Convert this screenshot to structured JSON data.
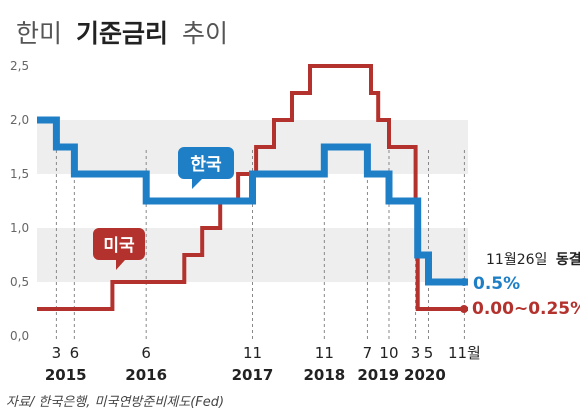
{
  "title": {
    "prefix": "한미",
    "bold": "기준금리",
    "suffix": "추이"
  },
  "chart_data": {
    "type": "line",
    "step": true,
    "ylim": [
      0,
      2.5
    ],
    "yticks": [
      "0,0",
      "0,5",
      "1,0",
      "1,5",
      "2,0",
      "2,5"
    ],
    "grid": "alternating horizontal bands",
    "series": [
      {
        "name": "한국",
        "color": "#1f7fc6",
        "points": [
          [
            2014.9,
            2.0
          ],
          [
            2015.17,
            2.0
          ],
          [
            2015.17,
            1.75
          ],
          [
            2015.42,
            1.75
          ],
          [
            2015.42,
            1.5
          ],
          [
            2016.42,
            1.5
          ],
          [
            2016.42,
            1.25
          ],
          [
            2017.9,
            1.25
          ],
          [
            2017.9,
            1.5
          ],
          [
            2018.9,
            1.5
          ],
          [
            2018.9,
            1.75
          ],
          [
            2019.5,
            1.75
          ],
          [
            2019.5,
            1.5
          ],
          [
            2019.8,
            1.5
          ],
          [
            2019.8,
            1.25
          ],
          [
            2020.2,
            1.25
          ],
          [
            2020.2,
            0.75
          ],
          [
            2020.35,
            0.75
          ],
          [
            2020.35,
            0.5
          ],
          [
            2020.9,
            0.5
          ]
        ]
      },
      {
        "name": "미국",
        "color": "#b3322d",
        "points": [
          [
            2014.9,
            0.25
          ],
          [
            2015.95,
            0.25
          ],
          [
            2015.95,
            0.5
          ],
          [
            2016.95,
            0.5
          ],
          [
            2016.95,
            0.75
          ],
          [
            2017.2,
            0.75
          ],
          [
            2017.2,
            1.0
          ],
          [
            2017.45,
            1.0
          ],
          [
            2017.45,
            1.25
          ],
          [
            2017.7,
            1.25
          ],
          [
            2017.7,
            1.5
          ],
          [
            2017.95,
            1.5
          ],
          [
            2017.95,
            1.75
          ],
          [
            2018.2,
            1.75
          ],
          [
            2018.2,
            2.0
          ],
          [
            2018.45,
            2.0
          ],
          [
            2018.45,
            2.25
          ],
          [
            2018.7,
            2.25
          ],
          [
            2018.7,
            2.5
          ],
          [
            2019.55,
            2.5
          ],
          [
            2019.55,
            2.25
          ],
          [
            2019.65,
            2.25
          ],
          [
            2019.65,
            2.0
          ],
          [
            2019.8,
            2.0
          ],
          [
            2019.8,
            1.75
          ],
          [
            2020.17,
            1.75
          ],
          [
            2020.17,
            1.25
          ],
          [
            2020.2,
            1.25
          ],
          [
            2020.2,
            0.25
          ],
          [
            2020.9,
            0.25
          ]
        ]
      }
    ],
    "month_ticks": [
      {
        "label": "3",
        "x": 2015.17
      },
      {
        "label": "6",
        "x": 2015.42
      },
      {
        "label": "6",
        "x": 2016.42
      },
      {
        "label": "11",
        "x": 2017.9
      },
      {
        "label": "11",
        "x": 2018.9
      },
      {
        "label": "7",
        "x": 2019.5
      },
      {
        "label": "10",
        "x": 2019.8
      },
      {
        "label": "3",
        "x": 2020.17
      },
      {
        "label": "5",
        "x": 2020.35
      },
      {
        "label": "11월",
        "x": 2020.85
      }
    ],
    "years": [
      {
        "label": "2015",
        "x": 2015.3
      },
      {
        "label": "2016",
        "x": 2016.42
      },
      {
        "label": "2017",
        "x": 2017.9
      },
      {
        "label": "2018",
        "x": 2018.9
      },
      {
        "label": "2019",
        "x": 2019.65
      },
      {
        "label": "2020",
        "x": 2020.3
      }
    ],
    "annotations": {
      "korea_callout": "한국",
      "us_callout": "미국",
      "date_note_prefix": "11월26일",
      "date_note_bold": "동결",
      "korea_end": "0.5%",
      "us_end": "0.00~0.25%"
    },
    "source": "자료/ 한국은행, 미국연방준비제도(Fed)"
  }
}
